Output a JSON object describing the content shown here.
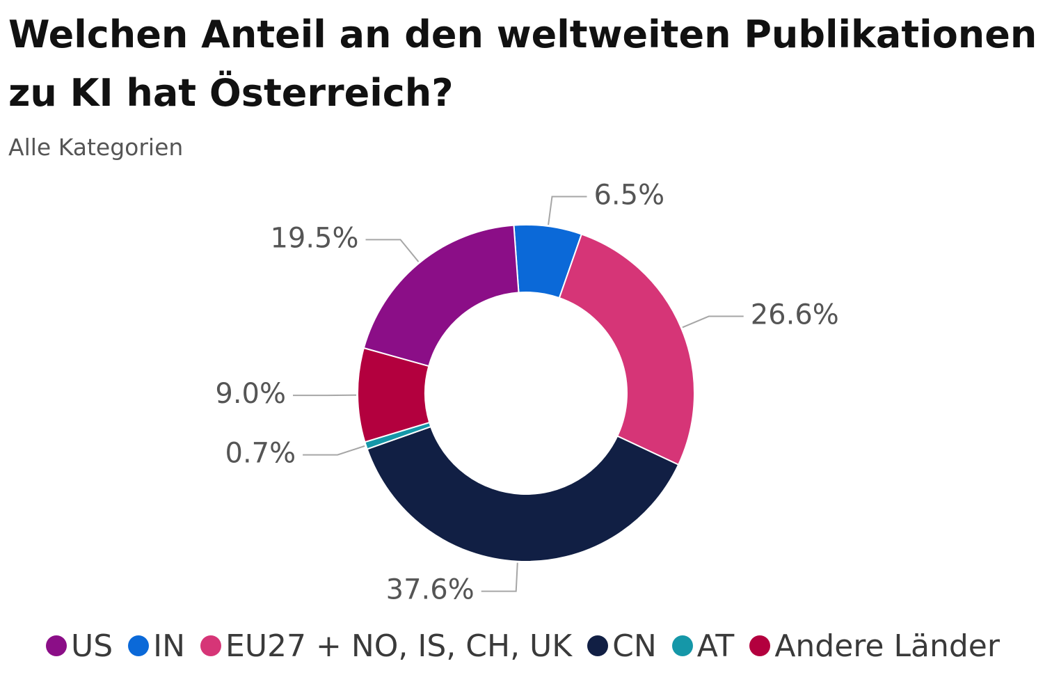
{
  "title": "Welchen Anteil an den weltweiten Publikationen zu KI hat Österreich?",
  "subtitle": "Alle Kategorien",
  "chart_data": {
    "type": "pie",
    "donut": true,
    "title": "Welchen Anteil an den weltweiten Publikationen zu KI hat Österreich?",
    "subtitle": "Alle Kategorien",
    "categories": [
      "US",
      "IN",
      "EU27 + NO, IS, CH, UK",
      "CN",
      "AT",
      "Andere Länder"
    ],
    "values": [
      19.5,
      6.5,
      26.6,
      37.6,
      0.7,
      9.0
    ],
    "labels": [
      "19.5%",
      "6.5%",
      "26.6%",
      "37.6%",
      "0.7%",
      "9.0%"
    ],
    "colors": [
      "#8b0e87",
      "#0b69d8",
      "#d63577",
      "#111f44",
      "#1597a8",
      "#b3003e"
    ],
    "slice_order": [
      1,
      2,
      3,
      4,
      5,
      0
    ],
    "legend_position": "bottom"
  },
  "legend": [
    {
      "label": "US",
      "color": "#8b0e87"
    },
    {
      "label": "IN",
      "color": "#0b69d8"
    },
    {
      "label": "EU27 + NO, IS, CH, UK",
      "color": "#d63577"
    },
    {
      "label": "CN",
      "color": "#111f44"
    },
    {
      "label": "AT",
      "color": "#1597a8"
    },
    {
      "label": "Andere Länder",
      "color": "#b3003e"
    }
  ]
}
